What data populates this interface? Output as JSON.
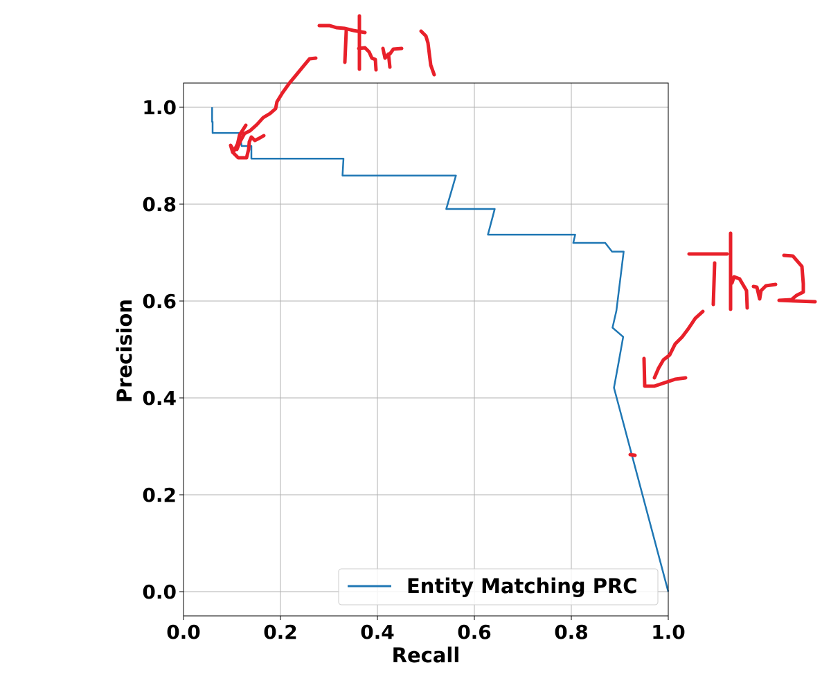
{
  "chart_data": {
    "type": "line",
    "title": "",
    "xlabel": "Recall",
    "ylabel": "Precision",
    "xlim": [
      0.0,
      1.0
    ],
    "ylim": [
      -0.05,
      1.05
    ],
    "xticks": [
      "0.0",
      "0.2",
      "0.4",
      "0.6",
      "0.8",
      "1.0"
    ],
    "yticks": [
      "0.0",
      "0.2",
      "0.4",
      "0.6",
      "0.8",
      "1.0"
    ],
    "grid": true,
    "legend_position": "bottom-right",
    "series": [
      {
        "name": "Entity Matching PRC",
        "color": "#1f77b4",
        "x": [
          0.059,
          0.059,
          0.06,
          0.06,
          0.115,
          0.12,
          0.14,
          0.14,
          0.33,
          0.328,
          0.562,
          0.542,
          0.642,
          0.628,
          0.808,
          0.804,
          0.87,
          0.884,
          0.908,
          0.893,
          0.885,
          0.907,
          0.897,
          0.888,
          1.0
        ],
        "y": [
          1.0,
          0.97,
          0.97,
          0.947,
          0.947,
          0.92,
          0.92,
          0.894,
          0.894,
          0.859,
          0.859,
          0.79,
          0.79,
          0.737,
          0.737,
          0.72,
          0.72,
          0.702,
          0.702,
          0.58,
          0.545,
          0.526,
          0.47,
          0.421,
          0.0
        ]
      }
    ]
  },
  "annotations": {
    "ink_color": "#e8202a",
    "labels": [
      "Thr 1",
      "Thr 2"
    ]
  }
}
